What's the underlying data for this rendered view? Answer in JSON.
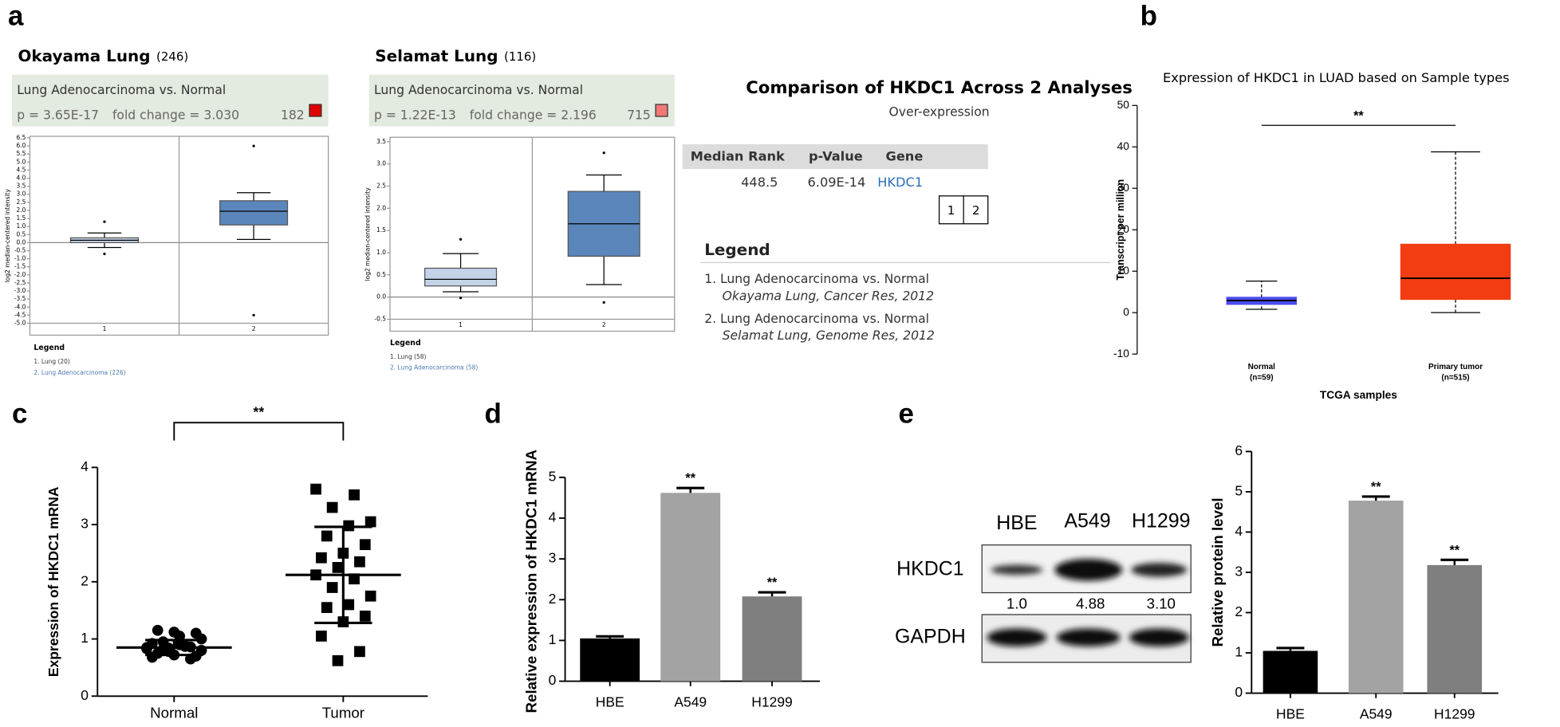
{
  "panel_labels": [
    "a",
    "b",
    "c",
    "d",
    "e"
  ],
  "chart_data": [
    {
      "type": "box",
      "title": "Okayama Lung",
      "title_count": "(246)",
      "header": "Lung Adenocarcinoma vs. Normal",
      "stat_p": "p = 3.65E-17",
      "stat_fold": "fold change = 3.030",
      "stat_rank": "182",
      "marker_color": "#e00000",
      "ylabel": "log2 median-centered intensity",
      "categories": [
        "1",
        "2"
      ],
      "colors": [
        "#c3d4e8",
        "#5b86bc"
      ],
      "boxes": [
        {
          "low": -0.3,
          "q1": 0.0,
          "median": 0.15,
          "q3": 0.3,
          "high": 0.6,
          "outliers": [
            1.3,
            -0.7
          ]
        },
        {
          "low": 0.2,
          "q1": 1.1,
          "median": 1.95,
          "q3": 2.6,
          "high": 3.1,
          "outliers": [
            6.0,
            -4.5
          ]
        }
      ],
      "ylim": [
        -5.0,
        6.6
      ],
      "yticks": [
        6.5,
        {
          "value": 6,
          "label": "6.0"
        },
        5.5,
        {
          "value": 5,
          "label": "5.0"
        },
        4.5,
        {
          "value": 4,
          "label": "4.0"
        },
        3.5,
        {
          "value": 3,
          "label": "3.0"
        },
        2.5,
        {
          "value": 2,
          "label": "2.0"
        },
        1.5,
        {
          "value": 1,
          "label": "1.0"
        },
        0.5,
        {
          "value": 0,
          "label": "0.0"
        },
        -0.5,
        {
          "value": -1,
          "label": "-1.0"
        },
        -1.5,
        {
          "value": -2,
          "label": "-2.0"
        },
        -2.5,
        {
          "value": -3,
          "label": "-3.0"
        },
        -3.5,
        {
          "value": -4,
          "label": "-4.0"
        },
        -4.5,
        {
          "value": -5,
          "label": "-5.0"
        }
      ],
      "legend_title": "Legend",
      "legend": [
        "1. Lung (20)",
        "2. Lung Adenocarcinoma (226)"
      ]
    },
    {
      "type": "box",
      "title": "Selamat Lung",
      "title_count": "(116)",
      "header": "Lung Adenocarcinoma vs. Normal",
      "stat_p": "p = 1.22E-13",
      "stat_fold": "fold change = 2.196",
      "stat_rank": "715",
      "marker_color": "#f07878",
      "ylabel": "log2 median-centered intensity",
      "categories": [
        "1",
        "2"
      ],
      "colors": [
        "#c3d4e8",
        "#5b86bc"
      ],
      "boxes": [
        {
          "low": 0.12,
          "q1": 0.25,
          "median": 0.4,
          "q3": 0.65,
          "high": 0.98,
          "outliers": [
            1.3,
            -0.02
          ]
        },
        {
          "low": 0.28,
          "q1": 0.92,
          "median": 1.65,
          "q3": 2.38,
          "high": 2.75,
          "outliers": [
            3.25,
            -0.12
          ]
        }
      ],
      "ylim": [
        -0.5,
        3.6
      ],
      "yticks": [
        3.5,
        {
          "value": 3,
          "label": "3.0"
        },
        2.5,
        {
          "value": 2,
          "label": "2.0"
        },
        1.5,
        {
          "value": 1,
          "label": "1.0"
        },
        0.5,
        {
          "value": 0,
          "label": "0.0"
        },
        -0.5
      ],
      "legend_title": "Legend",
      "legend": [
        "1. Lung (58)",
        "2. Lung Adenocarcinoma (58)"
      ]
    },
    {
      "type": "box",
      "title": "Expression of HKDC1 in LUAD based on Sample types",
      "ylabel": "Transcript per million",
      "xlabel": "TCGA samples",
      "categories": [
        "Normal",
        "Primary tumor"
      ],
      "category_notes": [
        "(n=59)",
        "(n=515)"
      ],
      "colors": [
        "#4b4bef",
        "#f23c12"
      ],
      "boxes": [
        {
          "low": 0.8,
          "q1": 2.0,
          "median": 2.9,
          "q3": 3.7,
          "high": 7.6
        },
        {
          "low": 0.0,
          "q1": 3.2,
          "median": 8.3,
          "q3": 16.5,
          "high": 38.8
        }
      ],
      "annotation": "**",
      "ylim": [
        -10,
        50
      ],
      "yticks": [
        -10,
        0,
        10,
        20,
        30,
        40,
        50
      ]
    },
    {
      "type": "scatter",
      "ylabel": "Expression of HKDC1 mRNA",
      "categories": [
        "Normal",
        "Tumor"
      ],
      "markers": [
        "circle",
        "square"
      ],
      "points": [
        [
          0.85,
          0.88,
          0.82,
          0.8,
          0.9,
          0.75,
          0.7,
          0.72,
          0.68,
          0.65,
          0.78,
          0.83,
          0.87,
          0.95,
          1.0,
          1.05,
          1.15,
          1.1,
          1.12,
          0.92,
          0.86,
          0.84
        ],
        [
          3.62,
          3.52,
          3.3,
          3.05,
          2.98,
          2.8,
          2.65,
          2.5,
          2.42,
          2.35,
          2.25,
          2.12,
          2.05,
          1.9,
          1.75,
          1.6,
          1.55,
          1.4,
          1.3,
          1.05,
          0.78,
          0.62
        ]
      ],
      "mean": [
        0.85,
        2.12
      ],
      "sd": [
        0.13,
        0.84
      ],
      "annotation": "**",
      "ylim": [
        0,
        4
      ],
      "yticks": [
        0,
        1,
        2,
        3,
        4
      ]
    },
    {
      "type": "bar",
      "ylabel": "Relative expression of HKDC1 mRNA",
      "categories": [
        "HBE",
        "A549",
        "H1299"
      ],
      "values": [
        1.05,
        4.62,
        2.08
      ],
      "errors": [
        0.05,
        0.12,
        0.1
      ],
      "colors": [
        "#000000",
        "#a3a3a3",
        "#7f7f7f"
      ],
      "annotations": [
        null,
        "**",
        "**"
      ],
      "ylim": [
        0,
        5
      ],
      "yticks": [
        0,
        1,
        2,
        3,
        4,
        5
      ]
    },
    {
      "type": "bar",
      "ylabel": "Relative protein level",
      "categories": [
        "HBE",
        "A549",
        "H1299"
      ],
      "values": [
        1.05,
        4.78,
        3.18
      ],
      "errors": [
        0.07,
        0.1,
        0.13
      ],
      "colors": [
        "#000000",
        "#a3a3a3",
        "#7f7f7f"
      ],
      "annotations": [
        null,
        "**",
        "**"
      ],
      "ylim": [
        0,
        6
      ],
      "yticks": [
        0,
        1,
        2,
        3,
        4,
        5,
        6
      ]
    }
  ],
  "comparison": {
    "title": "Comparison of HKDC1 Across 2 Analyses",
    "subtitle": "Over-expression",
    "headers": [
      "Median Rank",
      "p-Value",
      "Gene"
    ],
    "row": [
      "448.5",
      "6.09E-14",
      "HKDC1"
    ],
    "cells": [
      "1",
      "2"
    ],
    "cell_colors": [
      "#ff0000",
      "#ff7070"
    ],
    "legend_title": "Legend",
    "legend": [
      {
        "line1": "1. Lung Adenocarcinoma vs. Normal",
        "line2": "Okayama Lung, Cancer Res, 2012"
      },
      {
        "line1": "2. Lung Adenocarcinoma vs. Normal",
        "line2": "Selamat Lung, Genome Res, 2012"
      }
    ]
  },
  "blot": {
    "lanes": [
      "HBE",
      "A549",
      "H1299"
    ],
    "rows": [
      "HKDC1",
      "GAPDH"
    ],
    "quantities": [
      "1.0",
      "4.88",
      "3.10"
    ]
  }
}
